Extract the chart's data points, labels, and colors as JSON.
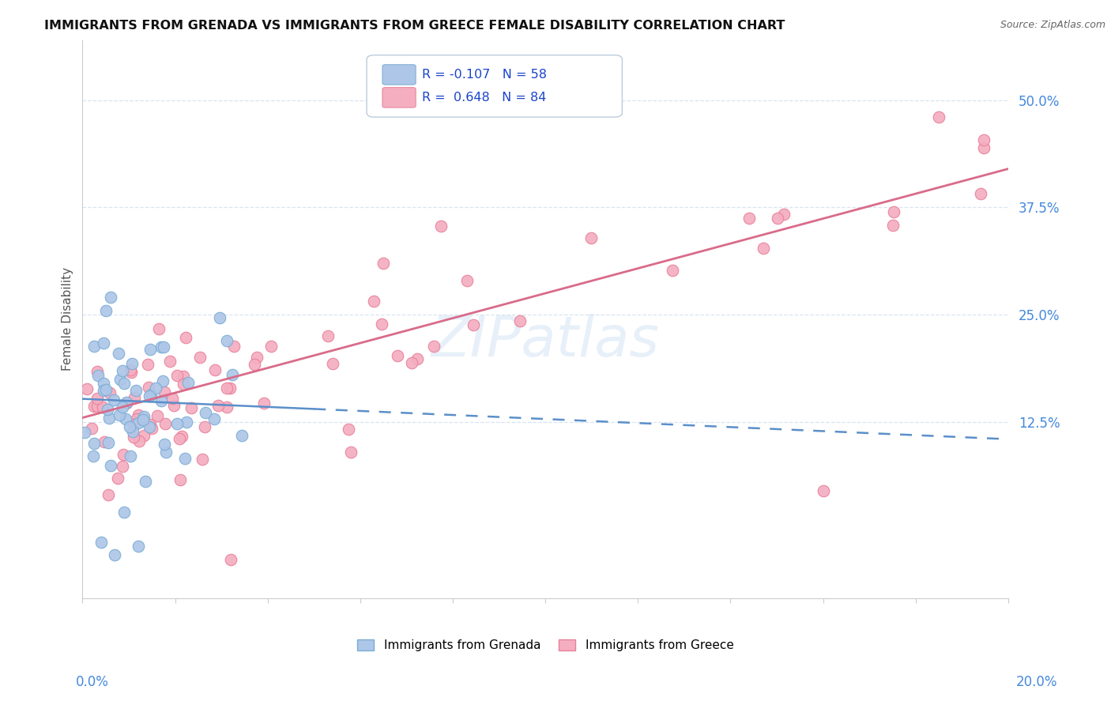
{
  "title": "IMMIGRANTS FROM GRENADA VS IMMIGRANTS FROM GREECE FEMALE DISABILITY CORRELATION CHART",
  "source": "Source: ZipAtlas.com",
  "ylabel": "Female Disability",
  "xlim": [
    0.0,
    20.0
  ],
  "ylim": [
    -8.0,
    57.0
  ],
  "yticks": [
    12.5,
    25.0,
    37.5,
    50.0
  ],
  "ytick_labels": [
    "12.5%",
    "25.0%",
    "37.5%",
    "50.0%"
  ],
  "grenada_color": "#aec6e8",
  "grenada_edge": "#7aadd4",
  "greece_color": "#f4aec0",
  "greece_edge": "#e8809a",
  "trend_grenada_color": "#5b8fc9",
  "trend_greece_color": "#d96b8a",
  "watermark_color": "#d8e6f5",
  "legend_r1": "R = -0.107",
  "legend_n1": "N = 58",
  "legend_r2": "R =  0.648",
  "legend_n2": "N = 84",
  "legend_text_color": "#1a44cc",
  "title_color": "#111111",
  "source_color": "#666666",
  "ylabel_color": "#555555",
  "ytick_color": "#4488dd",
  "grid_color": "#d8e4f0",
  "spine_color": "#cccccc"
}
